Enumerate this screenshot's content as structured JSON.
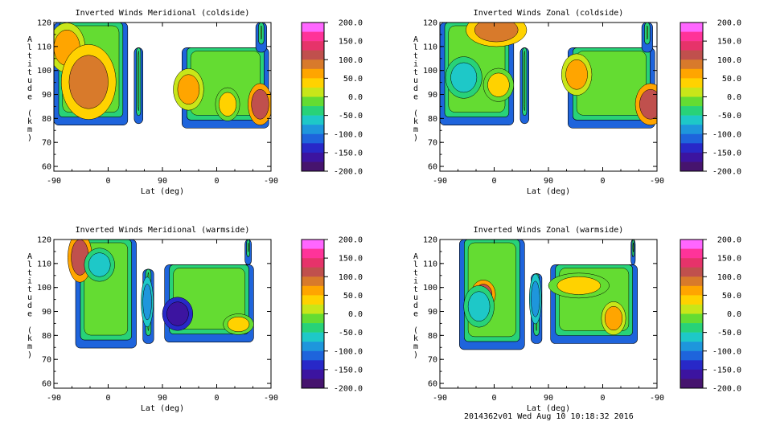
{
  "footer": "2014362v01 Wed Aug 10 10:18:32 2016",
  "colorbar": {
    "labels": [
      "200.0",
      "150.0",
      "100.0",
      "50.0",
      "0.0",
      "-50.0",
      "-100.0",
      "-150.0",
      "-200.0"
    ],
    "colors": [
      "#ff66ff",
      "#ff3399",
      "#e6336a",
      "#c0504d",
      "#d87a2b",
      "#ffa500",
      "#ffd200",
      "#c8e619",
      "#64dc32",
      "#28d278",
      "#1ec8c8",
      "#1e96dc",
      "#1e64dc",
      "#2828c8",
      "#3c14a0",
      "#46146e"
    ]
  },
  "chart_data": [
    {
      "type": "heatmap",
      "title": "Inverted Winds Meridional (coldside)",
      "xlabel": "Lat (deg)",
      "ylabel": "Altitude (km)",
      "xticks": [
        "-90",
        "0",
        "90",
        "0",
        "-90"
      ],
      "yticks": [
        "60",
        "70",
        "80",
        "90",
        "100",
        "110",
        "120"
      ],
      "ylim": [
        58,
        120
      ],
      "zlim": [
        -200,
        200
      ]
    },
    {
      "type": "heatmap",
      "title": "Inverted Winds Zonal (coldside)",
      "xlabel": "Lat (deg)",
      "ylabel": "Altitude (km)",
      "xticks": [
        "-90",
        "0",
        "90",
        "0",
        "-90"
      ],
      "yticks": [
        "60",
        "70",
        "80",
        "90",
        "100",
        "110",
        "120"
      ],
      "ylim": [
        58,
        120
      ],
      "zlim": [
        -200,
        200
      ]
    },
    {
      "type": "heatmap",
      "title": "Inverted Winds Meridional (warmside)",
      "xlabel": "Lat (deg)",
      "ylabel": "Altitude (km)",
      "xticks": [
        "-90",
        "0",
        "90",
        "0",
        "-90"
      ],
      "yticks": [
        "60",
        "70",
        "80",
        "90",
        "100",
        "110",
        "120"
      ],
      "ylim": [
        58,
        120
      ],
      "zlim": [
        -200,
        200
      ]
    },
    {
      "type": "heatmap",
      "title": "Inverted Winds Zonal (warmside)",
      "xlabel": "Lat (deg)",
      "ylabel": "Altitude (km)",
      "xticks": [
        "-90",
        "0",
        "90",
        "0",
        "-90"
      ],
      "yticks": [
        "60",
        "70",
        "80",
        "90",
        "100",
        "110",
        "120"
      ],
      "ylim": [
        58,
        120
      ],
      "zlim": [
        -200,
        200
      ]
    }
  ]
}
